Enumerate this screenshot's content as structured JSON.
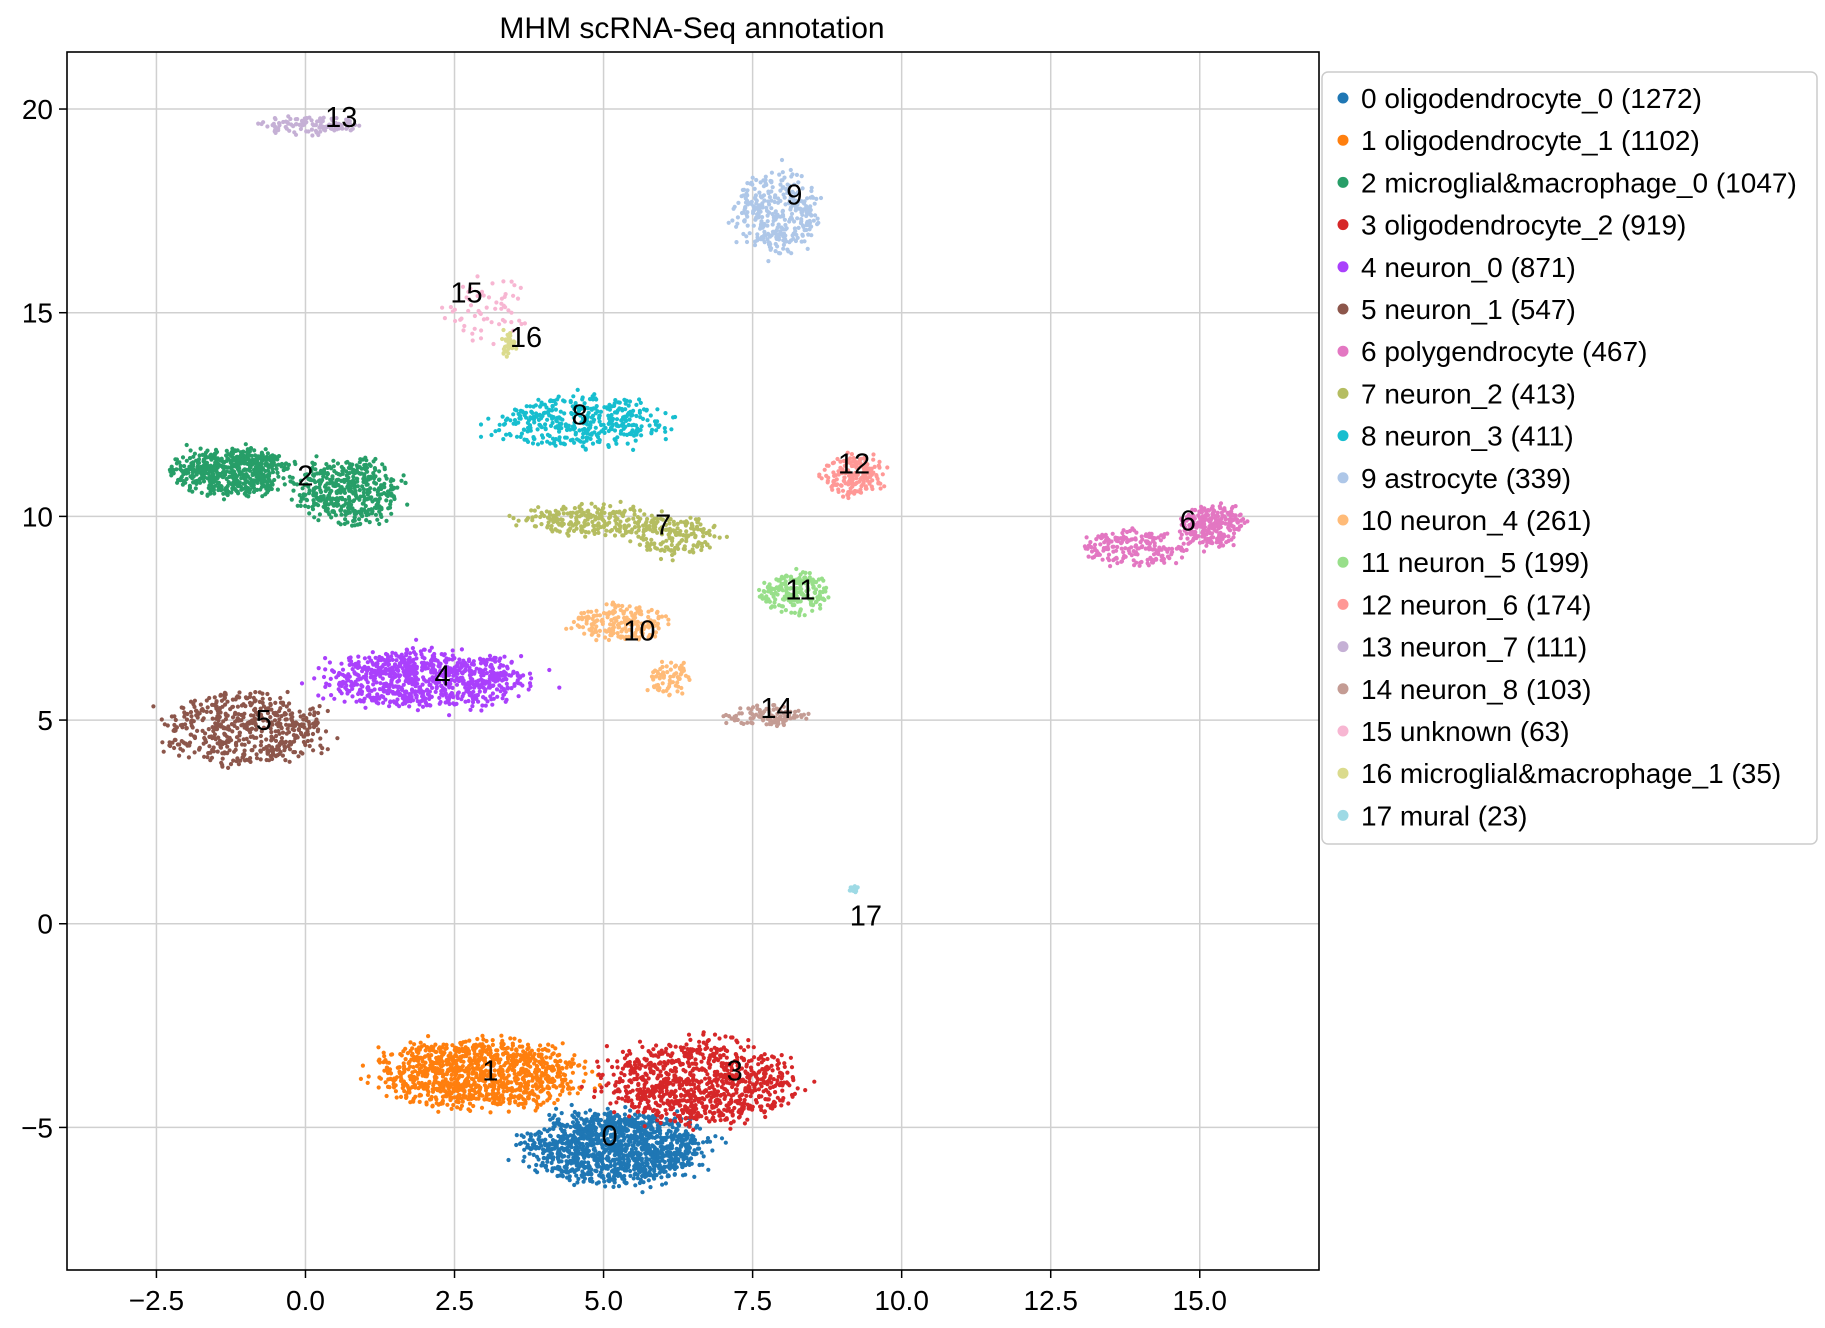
{
  "chart_data": {
    "type": "scatter",
    "title": "MHM scRNA-Seq annotation",
    "xlabel": "",
    "ylabel": "",
    "xlim": [
      -4.0,
      17.0
    ],
    "ylim": [
      -8.5,
      21.4
    ],
    "xticks": [
      -2.5,
      0.0,
      2.5,
      5.0,
      7.5,
      10.0,
      12.5,
      15.0
    ],
    "xtick_labels": [
      "−2.5",
      "0.0",
      "2.5",
      "5.0",
      "7.5",
      "10.0",
      "12.5",
      "15.0"
    ],
    "yticks": [
      -5,
      0,
      5,
      10,
      15,
      20
    ],
    "ytick_labels": [
      "−5",
      "0",
      "5",
      "10",
      "15",
      "20"
    ],
    "grid": true,
    "legend_position": "outside-right",
    "series": [
      {
        "id": "0",
        "name": "0 oligodendrocyte_0 (1272)",
        "color": "#1f77b4",
        "label_pos": [
          5.1,
          -5.2
        ],
        "count": 1272
      },
      {
        "id": "1",
        "name": "1 oligodendrocyte_1 (1102)",
        "color": "#ff7f0e",
        "label_pos": [
          3.1,
          -3.6
        ],
        "count": 1102
      },
      {
        "id": "2",
        "name": "2 microglial&macrophage_0 (1047)",
        "color": "#279e68",
        "label_pos": [
          0.0,
          11.0
        ],
        "count": 1047
      },
      {
        "id": "3",
        "name": "3 oligodendrocyte_2 (919)",
        "color": "#d62728",
        "label_pos": [
          7.2,
          -3.6
        ],
        "count": 919
      },
      {
        "id": "4",
        "name": "4 neuron_0 (871)",
        "color": "#aa40fc",
        "label_pos": [
          2.3,
          6.1
        ],
        "count": 871
      },
      {
        "id": "5",
        "name": "5 neuron_1 (547)",
        "color": "#8c564b",
        "label_pos": [
          -0.7,
          5.0
        ],
        "count": 547
      },
      {
        "id": "6",
        "name": "6 polygendrocyte (467)",
        "color": "#e377c2",
        "label_pos": [
          14.8,
          9.9
        ],
        "count": 467
      },
      {
        "id": "7",
        "name": "7 neuron_2 (413)",
        "color": "#b5bd61",
        "label_pos": [
          6.0,
          9.8
        ],
        "count": 413
      },
      {
        "id": "8",
        "name": "8 neuron_3 (411)",
        "color": "#17becf",
        "label_pos": [
          4.6,
          12.5
        ],
        "count": 411
      },
      {
        "id": "9",
        "name": "9 astrocyte (339)",
        "color": "#aec7e8",
        "label_pos": [
          8.2,
          17.9
        ],
        "count": 339
      },
      {
        "id": "10",
        "name": "10 neuron_4 (261)",
        "color": "#ffbb78",
        "label_pos": [
          5.6,
          7.2
        ],
        "count": 261
      },
      {
        "id": "11",
        "name": "11 neuron_5 (199)",
        "color": "#98df8a",
        "label_pos": [
          8.3,
          8.2
        ],
        "count": 199
      },
      {
        "id": "12",
        "name": "12 neuron_6 (174)",
        "color": "#ff9896",
        "label_pos": [
          9.2,
          11.3
        ],
        "count": 174
      },
      {
        "id": "13",
        "name": "13 neuron_7 (111)",
        "color": "#c5b0d5",
        "label_pos": [
          0.6,
          19.8
        ],
        "count": 111
      },
      {
        "id": "14",
        "name": "14 neuron_8 (103)",
        "color": "#c49c94",
        "label_pos": [
          7.9,
          5.3
        ],
        "count": 103
      },
      {
        "id": "15",
        "name": "15 unknown (63)",
        "color": "#f7b6d2",
        "label_pos": [
          2.7,
          15.5
        ],
        "count": 63
      },
      {
        "id": "16",
        "name": "16 microglial&macrophage_1 (35)",
        "color": "#dbdb8d",
        "label_pos": [
          3.7,
          14.4
        ],
        "count": 35
      },
      {
        "id": "17",
        "name": "17 mural (23)",
        "color": "#9edae5",
        "label_pos": [
          9.4,
          0.2
        ],
        "count": 23
      }
    ],
    "cluster_shapes": [
      {
        "id": "0",
        "blobs": [
          [
            5.2,
            -5.5,
            1.7,
            1.0,
            1.0
          ]
        ]
      },
      {
        "id": "1",
        "blobs": [
          [
            2.9,
            -3.7,
            1.9,
            0.95,
            1.0
          ]
        ]
      },
      {
        "id": "2",
        "blobs": [
          [
            -1.2,
            11.1,
            1.1,
            0.65,
            0.55
          ],
          [
            0.7,
            10.6,
            1.0,
            0.9,
            0.45
          ]
        ]
      },
      {
        "id": "3",
        "blobs": [
          [
            6.6,
            -3.9,
            1.8,
            1.15,
            1.0
          ]
        ]
      },
      {
        "id": "4",
        "blobs": [
          [
            2.0,
            6.0,
            2.0,
            0.8,
            1.0
          ]
        ]
      },
      {
        "id": "5",
        "blobs": [
          [
            -1.0,
            4.8,
            1.6,
            1.0,
            1.0
          ]
        ]
      },
      {
        "id": "6",
        "blobs": [
          [
            13.9,
            9.2,
            1.0,
            0.5,
            0.45
          ],
          [
            15.2,
            9.8,
            0.6,
            0.6,
            0.55
          ]
        ]
      },
      {
        "id": "7",
        "blobs": [
          [
            4.8,
            9.9,
            1.3,
            0.45,
            0.6
          ],
          [
            6.2,
            9.5,
            0.8,
            0.6,
            0.4
          ]
        ]
      },
      {
        "id": "8",
        "blobs": [
          [
            4.6,
            12.3,
            1.6,
            0.75,
            1.0
          ]
        ]
      },
      {
        "id": "9",
        "blobs": [
          [
            7.9,
            17.5,
            0.8,
            1.1,
            1.0
          ]
        ]
      },
      {
        "id": "10",
        "blobs": [
          [
            5.3,
            7.4,
            0.9,
            0.5,
            0.7
          ],
          [
            6.1,
            6.0,
            0.4,
            0.5,
            0.3
          ]
        ]
      },
      {
        "id": "11",
        "blobs": [
          [
            8.2,
            8.1,
            0.7,
            0.6,
            1.0
          ]
        ]
      },
      {
        "id": "12",
        "blobs": [
          [
            9.2,
            11.0,
            0.6,
            0.6,
            1.0
          ]
        ]
      },
      {
        "id": "13",
        "blobs": [
          [
            0.1,
            19.6,
            0.9,
            0.25,
            1.0
          ]
        ]
      },
      {
        "id": "14",
        "blobs": [
          [
            7.7,
            5.1,
            0.8,
            0.3,
            1.0
          ]
        ]
      },
      {
        "id": "15",
        "blobs": [
          [
            3.0,
            15.1,
            0.8,
            0.9,
            1.0
          ]
        ]
      },
      {
        "id": "16",
        "blobs": [
          [
            3.4,
            14.2,
            0.12,
            0.45,
            1.0
          ]
        ]
      },
      {
        "id": "17",
        "blobs": [
          [
            9.2,
            0.85,
            0.1,
            0.1,
            1.0
          ]
        ]
      }
    ]
  }
}
